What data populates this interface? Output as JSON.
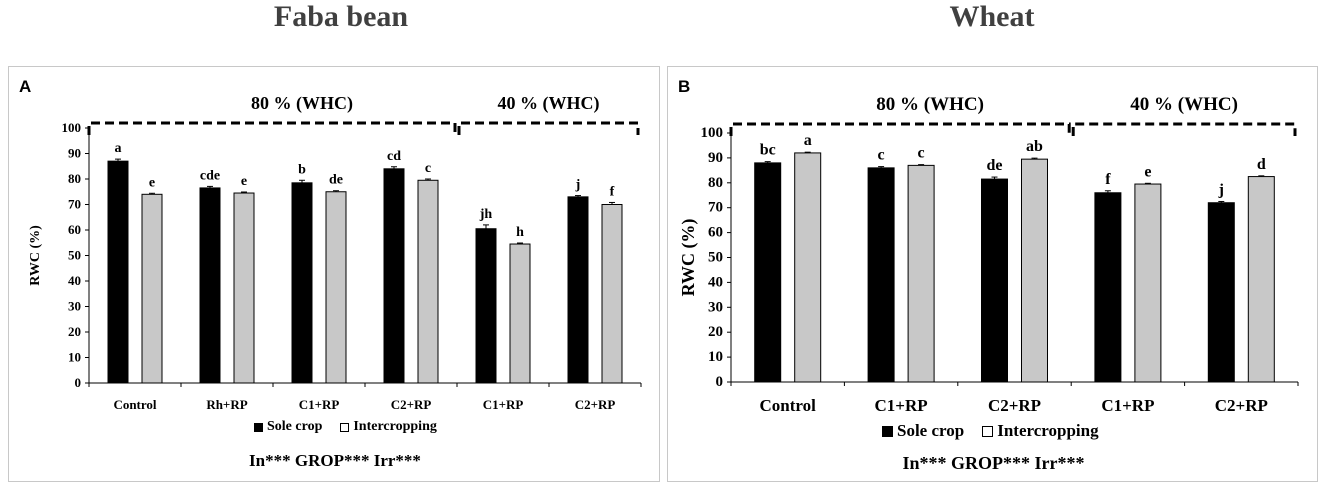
{
  "titles": {
    "faba": "Faba bean",
    "wheat": "Wheat"
  },
  "colors": {
    "sole": "#000000",
    "inter": "#c8c8c8"
  },
  "legend": {
    "sole": "Sole crop",
    "inter": "Intercropping"
  },
  "chart_data": [
    {
      "panel": "A",
      "type": "bar",
      "categories": [
        "Control",
        "Rh+RP",
        "C1+RP",
        "C2+RP",
        "C1+RP",
        "C2+RP"
      ],
      "series": [
        {
          "name": "Sole crop",
          "values": [
            87,
            76.5,
            78.5,
            84,
            60.5,
            73
          ],
          "errors": [
            0.8,
            0.6,
            1.0,
            0.8,
            1.5,
            0.5
          ],
          "letters": [
            "a",
            "cde",
            "b",
            "cd",
            "jh",
            "j"
          ]
        },
        {
          "name": "Intercropping",
          "values": [
            74,
            74.5,
            75,
            79.5,
            54.5,
            70
          ],
          "errors": [
            0.4,
            0.4,
            0.4,
            0.5,
            0.4,
            0.8
          ],
          "letters": [
            "e",
            "e",
            "de",
            "c",
            "h",
            "f"
          ]
        }
      ],
      "ylabel": "RWC (%)",
      "ylim": [
        0,
        100
      ],
      "yticks": [
        0,
        10,
        20,
        30,
        40,
        50,
        60,
        70,
        80,
        90,
        100
      ],
      "groups": [
        {
          "label": "80 % (WHC)",
          "from": 0,
          "to": 3
        },
        {
          "label": "40 % (WHC)",
          "from": 4,
          "to": 5
        }
      ],
      "stats": "In*** GROP*** Irr***"
    },
    {
      "panel": "B",
      "type": "bar",
      "categories": [
        "Control",
        "C1+RP",
        "C2+RP",
        "C1+RP",
        "C2+RP"
      ],
      "series": [
        {
          "name": "Sole crop",
          "values": [
            88,
            86,
            81.5,
            76,
            72
          ],
          "errors": [
            0.5,
            0.5,
            0.8,
            0.8,
            0.5
          ],
          "letters": [
            "bc",
            "c",
            "de",
            "f",
            "j"
          ]
        },
        {
          "name": "Intercropping",
          "values": [
            92,
            87,
            89.5,
            79.5,
            82.5
          ],
          "errors": [
            0.3,
            0.3,
            0.4,
            0.3,
            0.3
          ],
          "letters": [
            "a",
            "c",
            "ab",
            "e",
            "d"
          ]
        }
      ],
      "ylabel": "RWC (%)",
      "ylim": [
        0,
        100
      ],
      "yticks": [
        0,
        10,
        20,
        30,
        40,
        50,
        60,
        70,
        80,
        90,
        100
      ],
      "groups": [
        {
          "label": "80 % (WHC)",
          "from": 0,
          "to": 2
        },
        {
          "label": "40 % (WHC)",
          "from": 3,
          "to": 4
        }
      ],
      "stats": "In*** GROP*** Irr***"
    }
  ]
}
